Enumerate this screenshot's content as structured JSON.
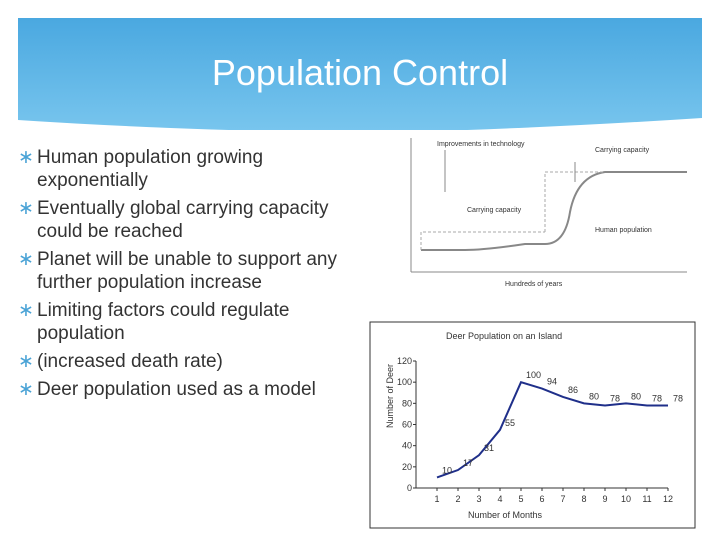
{
  "title": "Population Control",
  "bullets": [
    "Human population growing exponentially",
    "Eventually global carrying capacity could be reached",
    "Planet will be unable to support any further population increase",
    "Limiting factors could regulate population",
    " (increased death rate)",
    "Deer population used as a model"
  ],
  "figure": {
    "labels": [
      "Improvements in technology",
      "Carrying capacity",
      "Carrying capacity",
      "Human population"
    ],
    "xlabel": "Hundreds of years"
  },
  "chart_data": {
    "type": "line",
    "title": "Deer Population on an Island",
    "xlabel": "Number of Months",
    "ylabel": "Number of Deer",
    "x": [
      1,
      2,
      3,
      4,
      5,
      6,
      7,
      8,
      9,
      10,
      11,
      12
    ],
    "values": [
      10,
      17,
      31,
      55,
      100,
      94,
      86,
      80,
      78,
      80,
      78,
      78
    ],
    "xlim": [
      0,
      12
    ],
    "xticks": [
      1,
      2,
      3,
      4,
      5,
      6,
      7,
      8,
      9,
      10,
      11,
      12
    ],
    "ylim": [
      0,
      120
    ],
    "yticks": [
      0,
      20,
      40,
      60,
      80,
      100,
      120
    ],
    "color": "#1f2f8a"
  }
}
